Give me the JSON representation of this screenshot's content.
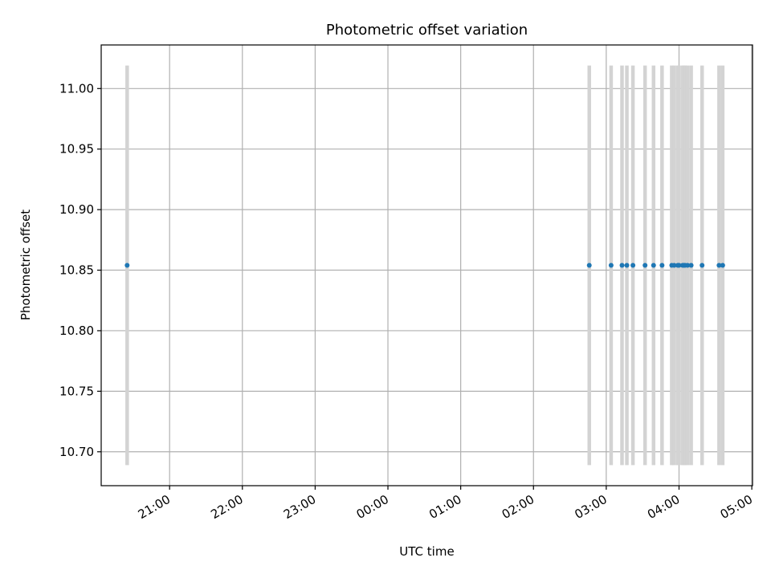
{
  "chart_data": {
    "type": "scatter",
    "title": "Photometric offset variation",
    "xlabel": "UTC time",
    "ylabel": "Photometric offset",
    "x_axis": {
      "type": "time",
      "tick_labels": [
        "21:00",
        "22:00",
        "23:00",
        "00:00",
        "01:00",
        "02:00",
        "03:00",
        "04:00",
        "05:00"
      ],
      "tick_hours": [
        21,
        22,
        23,
        24,
        25,
        26,
        27,
        28,
        29
      ],
      "range_hours": [
        20.06,
        29.01
      ]
    },
    "y_axis": {
      "tick_labels": [
        "10.70",
        "10.75",
        "10.80",
        "10.85",
        "10.90",
        "10.95",
        "11.00"
      ],
      "tick_values": [
        10.7,
        10.75,
        10.8,
        10.85,
        10.9,
        10.95,
        11.0
      ],
      "range": [
        10.672,
        11.036
      ]
    },
    "grid": true,
    "colors": {
      "marker": "#1f77b4",
      "errorbar": "#d3d3d3"
    },
    "series": [
      {
        "x": [
          "20:25",
          "02:46",
          "03:04",
          "03:13",
          "03:17",
          "03:22",
          "03:32",
          "03:39",
          "03:46",
          "03:54",
          "03:56",
          "03:59",
          "04:00",
          "04:03",
          "04:04",
          "04:05",
          "04:07",
          "04:10",
          "04:19",
          "04:33",
          "04:36"
        ],
        "y": [
          10.854,
          10.854,
          10.854,
          10.854,
          10.854,
          10.854,
          10.854,
          10.854,
          10.854,
          10.854,
          10.854,
          10.854,
          10.854,
          10.854,
          10.854,
          10.854,
          10.854,
          10.854,
          10.854,
          10.854,
          10.854
        ],
        "error_low": 10.689,
        "error_high": 11.019
      }
    ]
  }
}
